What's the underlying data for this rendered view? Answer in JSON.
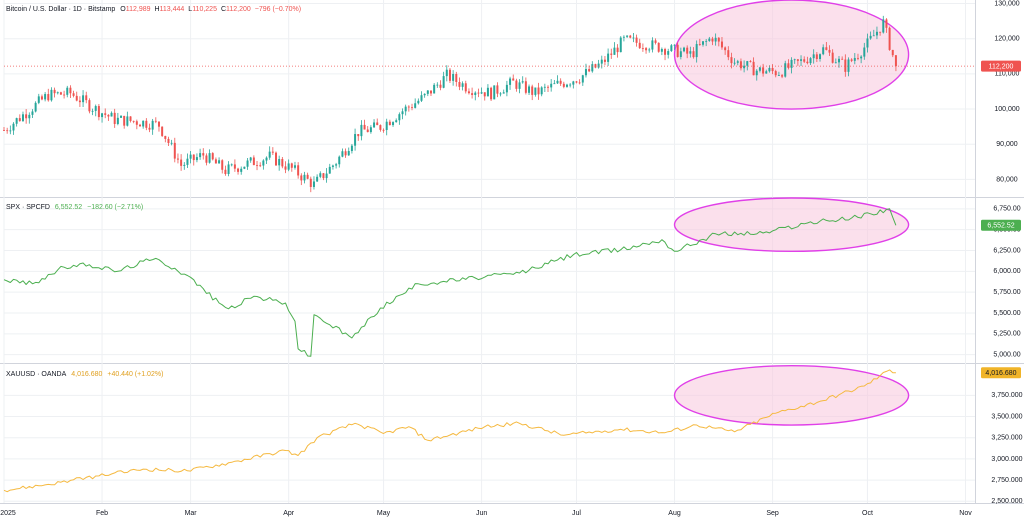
{
  "colors": {
    "btc_up": "#26a69a",
    "btc_down": "#ef5350",
    "spx_line": "#4caf50",
    "gold_line": "#f5b940",
    "highlight_fill": "#f8c7dc",
    "highlight_stroke": "#e040e8",
    "grid": "#eef0f3",
    "axis_text": "#131722",
    "price_line": "#ef5350"
  },
  "panels": [
    {
      "key": "btc",
      "legend": {
        "symbol": "Bitcoin / U.S. Dollar · 1D · Bitstamp",
        "open_label": "O",
        "open": "112,989",
        "high_label": "H",
        "high": "113,444",
        "low_label": "L",
        "low": "110,225",
        "close_label": "C",
        "close": "112,200",
        "change": "−796 (−0.70%)"
      },
      "last_value_tag": "112,200",
      "axis_ticks": [
        "130,000",
        "120,000",
        "110,000",
        "100,000",
        "90,000",
        "80,000"
      ]
    },
    {
      "key": "spx",
      "legend": {
        "symbol": "SPX · SPCFD",
        "value": "6,552.52",
        "change": "−182.60 (−2.71%)"
      },
      "last_value_tag": "6,552.52",
      "axis_ticks": [
        "6,750.00",
        "6,500.00",
        "6,250.00",
        "6,000.00",
        "5,750.00",
        "5,500.00",
        "5,250.00",
        "5,000.00"
      ]
    },
    {
      "key": "gold",
      "legend": {
        "symbol": "XAUUSD · OANDA",
        "value": "4,016.680",
        "change": "+40.440 (+1.02%)"
      },
      "last_value_tag": "4,016.680",
      "axis_ticks": [
        "3,750.000",
        "3,500.000",
        "3,250.000",
        "3,000.000",
        "2,750.000",
        "2,500.000"
      ]
    }
  ],
  "x_axis": {
    "labels": [
      "2025",
      "Feb",
      "Mar",
      "Apr",
      "May",
      "Jun",
      "Jul",
      "Aug",
      "Sep",
      "Oct",
      "Nov"
    ]
  },
  "chart_data": [
    {
      "type": "candlestick",
      "title": "Bitcoin / U.S. Dollar · 1D · Bitstamp",
      "ylim": [
        75000,
        131000
      ],
      "xlim": [
        "2025-01-01",
        "2025-11-04"
      ],
      "highlight_region": {
        "x": [
          "2025-08-01",
          "2025-10-14"
        ],
        "y": [
          100000,
          131000
        ]
      },
      "weekly_close": [
        [
          "2025-01-01",
          94000
        ],
        [
          "2025-01-08",
          99000
        ],
        [
          "2025-01-15",
          104000
        ],
        [
          "2025-01-22",
          104500
        ],
        [
          "2025-01-29",
          100500
        ],
        [
          "2025-02-05",
          97000
        ],
        [
          "2025-02-12",
          96500
        ],
        [
          "2025-02-19",
          95500
        ],
        [
          "2025-02-26",
          84000
        ],
        [
          "2025-03-05",
          87000
        ],
        [
          "2025-03-12",
          82500
        ],
        [
          "2025-03-19",
          84500
        ],
        [
          "2025-03-26",
          86500
        ],
        [
          "2025-04-02",
          83000
        ],
        [
          "2025-04-09",
          78500
        ],
        [
          "2025-04-16",
          85000
        ],
        [
          "2025-04-23",
          93500
        ],
        [
          "2025-04-30",
          95000
        ],
        [
          "2025-05-07",
          99500
        ],
        [
          "2025-05-14",
          103500
        ],
        [
          "2025-05-21",
          109500
        ],
        [
          "2025-05-28",
          106000
        ],
        [
          "2025-06-04",
          104500
        ],
        [
          "2025-06-11",
          107500
        ],
        [
          "2025-06-18",
          104500
        ],
        [
          "2025-06-25",
          107000
        ],
        [
          "2025-07-02",
          109000
        ],
        [
          "2025-07-09",
          113000
        ],
        [
          "2025-07-16",
          119500
        ],
        [
          "2025-07-23",
          118500
        ],
        [
          "2025-07-30",
          117000
        ],
        [
          "2025-08-06",
          115500
        ],
        [
          "2025-08-13",
          120500
        ],
        [
          "2025-08-20",
          113500
        ],
        [
          "2025-08-27",
          111000
        ],
        [
          "2025-09-03",
          110500
        ],
        [
          "2025-09-10",
          113500
        ],
        [
          "2025-09-17",
          117000
        ],
        [
          "2025-09-24",
          112000
        ],
        [
          "2025-10-01",
          118500
        ],
        [
          "2025-10-06",
          124500
        ],
        [
          "2025-10-10",
          112200
        ]
      ]
    },
    {
      "type": "line",
      "title": "SPX · SPCFD",
      "ylim": [
        4900,
        6880
      ],
      "xlim": [
        "2025-01-01",
        "2025-11-04"
      ],
      "highlight_region": {
        "x": [
          "2025-08-01",
          "2025-10-14"
        ],
        "y": [
          6240,
          6880
        ]
      },
      "x": [
        "2025-01-01",
        "2025-01-10",
        "2025-01-20",
        "2025-01-28",
        "2025-02-06",
        "2025-02-14",
        "2025-02-19",
        "2025-02-28",
        "2025-03-10",
        "2025-03-13",
        "2025-03-21",
        "2025-03-31",
        "2025-04-03",
        "2025-04-04",
        "2025-04-08",
        "2025-04-09",
        "2025-04-21",
        "2025-04-30",
        "2025-05-12",
        "2025-05-30",
        "2025-06-13",
        "2025-06-30",
        "2025-07-15",
        "2025-07-28",
        "2025-08-01",
        "2025-08-14",
        "2025-08-29",
        "2025-09-12",
        "2025-09-26",
        "2025-10-08",
        "2025-10-10"
      ],
      "y": [
        5900,
        5850,
        6050,
        6080,
        6000,
        6120,
        6140,
        5950,
        5620,
        5550,
        5700,
        5620,
        5400,
        5070,
        4980,
        5480,
        5200,
        5560,
        5850,
        5920,
        5980,
        6200,
        6260,
        6380,
        6240,
        6450,
        6460,
        6580,
        6640,
        6750,
        6552.52
      ]
    },
    {
      "type": "line",
      "title": "XAUUSD · OANDA",
      "ylim": [
        2480,
        4120
      ],
      "xlim": [
        "2025-01-01",
        "2025-11-04"
      ],
      "highlight_region": {
        "x": [
          "2025-08-01",
          "2025-10-14"
        ],
        "y": [
          3400,
          4100
        ]
      },
      "x": [
        "2025-01-01",
        "2025-01-15",
        "2025-01-31",
        "2025-02-14",
        "2025-02-28",
        "2025-03-14",
        "2025-03-31",
        "2025-04-04",
        "2025-04-10",
        "2025-04-22",
        "2025-05-01",
        "2025-05-09",
        "2025-05-15",
        "2025-06-02",
        "2025-06-13",
        "2025-06-27",
        "2025-07-15",
        "2025-07-29",
        "2025-08-08",
        "2025-08-20",
        "2025-09-02",
        "2025-09-16",
        "2025-09-30",
        "2025-10-08",
        "2025-10-10"
      ],
      "y": [
        2630,
        2700,
        2800,
        2880,
        2860,
        2960,
        3100,
        3040,
        3250,
        3420,
        3300,
        3380,
        3220,
        3380,
        3420,
        3280,
        3350,
        3310,
        3400,
        3320,
        3540,
        3680,
        3860,
        4050,
        4016.68
      ]
    }
  ]
}
